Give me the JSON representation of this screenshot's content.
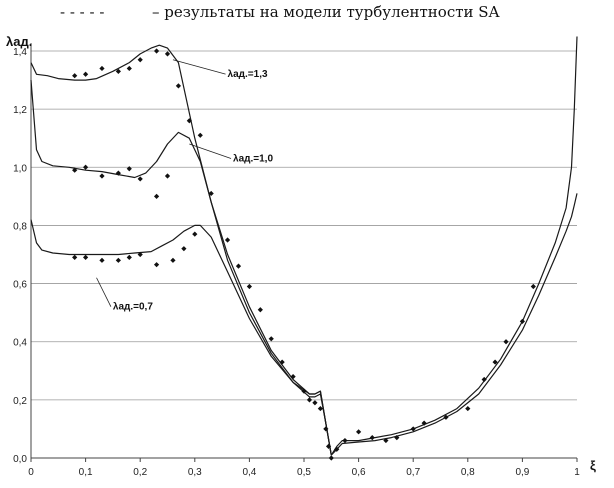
{
  "header": {
    "dashes": "- - - - -",
    "caption": "– результаты на модели турбулентности SA"
  },
  "chart_data": {
    "type": "line",
    "ylabel": "λад.",
    "xlabel": "ξ",
    "xlim": [
      0,
      1
    ],
    "ylim": [
      0,
      1.4
    ],
    "x_ticks": [
      "0",
      "0,1",
      "0,2",
      "0,3",
      "0,4",
      "0,5",
      "0,6",
      "0,7",
      "0,8",
      "0,9",
      "1"
    ],
    "y_ticks": [
      "0,0",
      "0,2",
      "0,4",
      "0,6",
      "0,8",
      "1,0",
      "1,2",
      "1,4"
    ],
    "grid": "horizontal",
    "annotations": [
      {
        "text": "λад.=1,3",
        "x": 0.36,
        "y": 1.31,
        "target": [
          0.26,
          1.37
        ]
      },
      {
        "text": "λад.=1,0",
        "x": 0.37,
        "y": 1.02,
        "target": [
          0.29,
          1.08
        ]
      },
      {
        "text": "λад.=0,7",
        "x": 0.15,
        "y": 0.51,
        "target": [
          0.12,
          0.62
        ]
      }
    ],
    "series": [
      {
        "x": [
          0,
          0.01,
          0.03,
          0.05,
          0.08,
          0.1,
          0.12,
          0.15,
          0.18,
          0.2,
          0.22,
          0.235,
          0.25,
          0.27,
          0.3,
          0.33,
          0.36,
          0.4,
          0.44,
          0.48,
          0.51,
          0.52,
          0.53,
          0.54,
          0.55
        ],
        "y": [
          1.36,
          1.32,
          1.315,
          1.305,
          1.3,
          1.3,
          1.305,
          1.33,
          1.36,
          1.39,
          1.41,
          1.42,
          1.41,
          1.36,
          1.1,
          0.88,
          0.68,
          0.5,
          0.36,
          0.26,
          0.21,
          0.21,
          0.22,
          0.12,
          0.01
        ]
      },
      {
        "x": [
          0,
          0.01,
          0.02,
          0.04,
          0.07,
          0.1,
          0.13,
          0.16,
          0.19,
          0.21,
          0.23,
          0.25,
          0.27,
          0.29,
          0.31,
          0.33,
          0.36,
          0.4,
          0.44,
          0.48,
          0.51,
          0.52,
          0.53,
          0.54,
          0.55
        ],
        "y": [
          1.3,
          1.06,
          1.02,
          1.005,
          1.0,
          0.99,
          0.985,
          0.975,
          0.965,
          0.98,
          1.02,
          1.08,
          1.12,
          1.1,
          1.02,
          0.88,
          0.7,
          0.52,
          0.37,
          0.27,
          0.22,
          0.22,
          0.23,
          0.12,
          0.01
        ]
      },
      {
        "x": [
          0,
          0.01,
          0.02,
          0.04,
          0.07,
          0.1,
          0.13,
          0.16,
          0.19,
          0.22,
          0.24,
          0.26,
          0.28,
          0.3,
          0.31,
          0.33,
          0.36,
          0.4,
          0.44,
          0.48,
          0.51,
          0.52,
          0.53,
          0.54,
          0.55
        ],
        "y": [
          0.82,
          0.74,
          0.715,
          0.705,
          0.7,
          0.7,
          0.7,
          0.7,
          0.705,
          0.71,
          0.73,
          0.75,
          0.78,
          0.8,
          0.8,
          0.76,
          0.64,
          0.48,
          0.35,
          0.26,
          0.22,
          0.22,
          0.23,
          0.12,
          0.01
        ]
      },
      {
        "x": [
          0.55,
          0.56,
          0.57,
          0.6,
          0.63,
          0.66,
          0.7,
          0.74,
          0.78,
          0.82,
          0.86,
          0.9,
          0.93,
          0.96,
          0.98,
          0.99,
          0.995,
          1.0
        ],
        "y": [
          0.01,
          0.04,
          0.06,
          0.06,
          0.07,
          0.08,
          0.1,
          0.13,
          0.17,
          0.24,
          0.34,
          0.47,
          0.6,
          0.74,
          0.86,
          1.0,
          1.2,
          1.45
        ]
      },
      {
        "x": [
          0.55,
          0.56,
          0.57,
          0.6,
          0.63,
          0.66,
          0.7,
          0.74,
          0.78,
          0.82,
          0.86,
          0.9,
          0.93,
          0.96,
          0.98,
          0.99,
          0.995,
          1.0
        ],
        "y": [
          0.01,
          0.03,
          0.05,
          0.055,
          0.06,
          0.07,
          0.09,
          0.12,
          0.16,
          0.22,
          0.32,
          0.44,
          0.56,
          0.69,
          0.78,
          0.83,
          0.87,
          0.91
        ]
      }
    ],
    "points": {
      "x": [
        0.08,
        0.1,
        0.13,
        0.16,
        0.18,
        0.2,
        0.23,
        0.25,
        0.27,
        0.29,
        0.31,
        0.08,
        0.1,
        0.13,
        0.16,
        0.18,
        0.2,
        0.23,
        0.25,
        0.08,
        0.1,
        0.13,
        0.16,
        0.18,
        0.2,
        0.23,
        0.26,
        0.28,
        0.3,
        0.33,
        0.36,
        0.38,
        0.4,
        0.42,
        0.44,
        0.46,
        0.48,
        0.5,
        0.51,
        0.52,
        0.53,
        0.54,
        0.545,
        0.55,
        0.56,
        0.575,
        0.6,
        0.625,
        0.65,
        0.67,
        0.7,
        0.72,
        0.76,
        0.8,
        0.83,
        0.85,
        0.87,
        0.9,
        0.92
      ],
      "y": [
        1.315,
        1.32,
        1.34,
        1.33,
        1.34,
        1.37,
        1.4,
        1.39,
        1.28,
        1.16,
        1.11,
        0.99,
        1.0,
        0.97,
        0.98,
        0.995,
        0.96,
        0.9,
        0.97,
        0.69,
        0.69,
        0.68,
        0.68,
        0.69,
        0.7,
        0.665,
        0.68,
        0.72,
        0.77,
        0.91,
        0.75,
        0.66,
        0.59,
        0.51,
        0.41,
        0.33,
        0.28,
        0.23,
        0.2,
        0.19,
        0.17,
        0.1,
        0.04,
        0.0,
        0.03,
        0.06,
        0.09,
        0.07,
        0.06,
        0.07,
        0.1,
        0.12,
        0.14,
        0.17,
        0.27,
        0.33,
        0.4,
        0.47,
        0.59
      ]
    }
  }
}
